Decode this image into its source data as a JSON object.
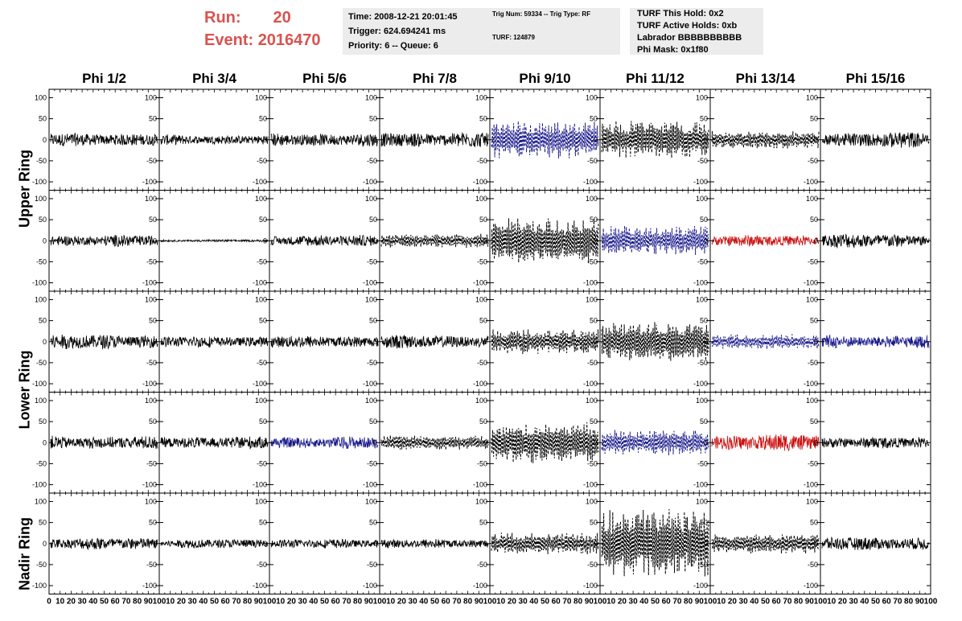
{
  "header": {
    "run_label": "Run:",
    "run_value": "20",
    "event_label": "Event:",
    "event_value": "2016470",
    "info1": [
      "Time: 2008-12-21 20:01:45",
      "Trigger: 624.694241 ms",
      "Priority: 6 -- Queue: 6"
    ],
    "info2": [
      "Trig Num: 59334 -- Trig Type: RF",
      "TURF: 124879"
    ],
    "info3": [
      "TURF This Hold: 0x2",
      "TURF Active Holds: 0xb",
      "Labrador BBBBBBBBBB",
      "Phi Mask: 0x1f80"
    ]
  },
  "columns": [
    "Phi 1/2",
    "Phi 3/4",
    "Phi 5/6",
    "Phi 7/8",
    "Phi 9/10",
    "Phi 11/12",
    "Phi 13/14",
    "Phi 15/16"
  ],
  "ring_labels": [
    "Upper Ring",
    "Lower Ring",
    "Nadir Ring"
  ],
  "colors": {
    "solid": "#000000",
    "dashed": "#000000",
    "blue": "#1a1a8c",
    "red": "#cc1111",
    "accent": "#d9534f"
  },
  "chart_data": {
    "type": "line",
    "description_ticks_y": [
      -100,
      -50,
      0,
      50,
      100
    ],
    "ylim": [
      -120,
      120
    ],
    "xlim": [
      0,
      100
    ],
    "x_ticks": [
      0,
      10,
      20,
      30,
      40,
      50,
      60,
      70,
      80,
      90,
      100
    ],
    "rows": 5,
    "cols": 8,
    "panels": [
      {
        "r": 0,
        "c": 0,
        "amp": 12,
        "style": "solid",
        "color": "solid"
      },
      {
        "r": 0,
        "c": 1,
        "amp": 9,
        "style": "solid",
        "color": "solid"
      },
      {
        "r": 0,
        "c": 2,
        "amp": 12,
        "style": "solid",
        "color": "solid"
      },
      {
        "r": 0,
        "c": 3,
        "amp": 14,
        "style": "solid",
        "color": "solid"
      },
      {
        "r": 0,
        "c": 4,
        "amp": 38,
        "style": "dashed",
        "color": "blue"
      },
      {
        "r": 0,
        "c": 5,
        "amp": 38,
        "style": "dashed",
        "color": "dashed"
      },
      {
        "r": 0,
        "c": 6,
        "amp": 18,
        "style": "dashed",
        "color": "dashed"
      },
      {
        "r": 0,
        "c": 7,
        "amp": 14,
        "style": "solid",
        "color": "solid"
      },
      {
        "r": 1,
        "c": 0,
        "amp": 10,
        "style": "solid",
        "color": "solid"
      },
      {
        "r": 1,
        "c": 1,
        "amp": 2,
        "style": "solid",
        "color": "solid"
      },
      {
        "r": 1,
        "c": 2,
        "amp": 10,
        "style": "solid",
        "color": "solid"
      },
      {
        "r": 1,
        "c": 3,
        "amp": 14,
        "style": "dashed",
        "color": "dashed"
      },
      {
        "r": 1,
        "c": 4,
        "amp": 45,
        "style": "dashed",
        "color": "dashed"
      },
      {
        "r": 1,
        "c": 5,
        "amp": 30,
        "style": "dashed",
        "color": "blue"
      },
      {
        "r": 1,
        "c": 6,
        "amp": 10,
        "style": "solid",
        "color": "red"
      },
      {
        "r": 1,
        "c": 7,
        "amp": 13,
        "style": "solid",
        "color": "solid"
      },
      {
        "r": 2,
        "c": 0,
        "amp": 13,
        "style": "solid",
        "color": "solid"
      },
      {
        "r": 2,
        "c": 1,
        "amp": 10,
        "style": "solid",
        "color": "solid"
      },
      {
        "r": 2,
        "c": 2,
        "amp": 11,
        "style": "solid",
        "color": "solid"
      },
      {
        "r": 2,
        "c": 3,
        "amp": 12,
        "style": "solid",
        "color": "solid"
      },
      {
        "r": 2,
        "c": 4,
        "amp": 25,
        "style": "dashed",
        "color": "dashed"
      },
      {
        "r": 2,
        "c": 5,
        "amp": 40,
        "style": "dashed",
        "color": "dashed"
      },
      {
        "r": 2,
        "c": 6,
        "amp": 15,
        "style": "dashed",
        "color": "blue"
      },
      {
        "r": 2,
        "c": 7,
        "amp": 12,
        "style": "solid",
        "color": "blue"
      },
      {
        "r": 3,
        "c": 0,
        "amp": 12,
        "style": "solid",
        "color": "solid"
      },
      {
        "r": 3,
        "c": 1,
        "amp": 11,
        "style": "solid",
        "color": "solid"
      },
      {
        "r": 3,
        "c": 2,
        "amp": 11,
        "style": "solid",
        "color": "blue"
      },
      {
        "r": 3,
        "c": 3,
        "amp": 15,
        "style": "dashed",
        "color": "dashed"
      },
      {
        "r": 3,
        "c": 4,
        "amp": 42,
        "style": "dashed",
        "color": "dashed"
      },
      {
        "r": 3,
        "c": 5,
        "amp": 26,
        "style": "dashed",
        "color": "blue"
      },
      {
        "r": 3,
        "c": 6,
        "amp": 15,
        "style": "solid",
        "color": "red"
      },
      {
        "r": 3,
        "c": 7,
        "amp": 10,
        "style": "solid",
        "color": "solid"
      },
      {
        "r": 4,
        "c": 0,
        "amp": 11,
        "style": "solid",
        "color": "solid"
      },
      {
        "r": 4,
        "c": 1,
        "amp": 8,
        "style": "solid",
        "color": "solid"
      },
      {
        "r": 4,
        "c": 2,
        "amp": 8,
        "style": "solid",
        "color": "solid"
      },
      {
        "r": 4,
        "c": 3,
        "amp": 8,
        "style": "solid",
        "color": "solid"
      },
      {
        "r": 4,
        "c": 4,
        "amp": 22,
        "style": "dashed",
        "color": "dashed"
      },
      {
        "r": 4,
        "c": 5,
        "amp": 70,
        "style": "dashed",
        "color": "dashed"
      },
      {
        "r": 4,
        "c": 6,
        "amp": 20,
        "style": "dashed",
        "color": "dashed"
      },
      {
        "r": 4,
        "c": 7,
        "amp": 12,
        "style": "solid",
        "color": "solid"
      }
    ]
  }
}
